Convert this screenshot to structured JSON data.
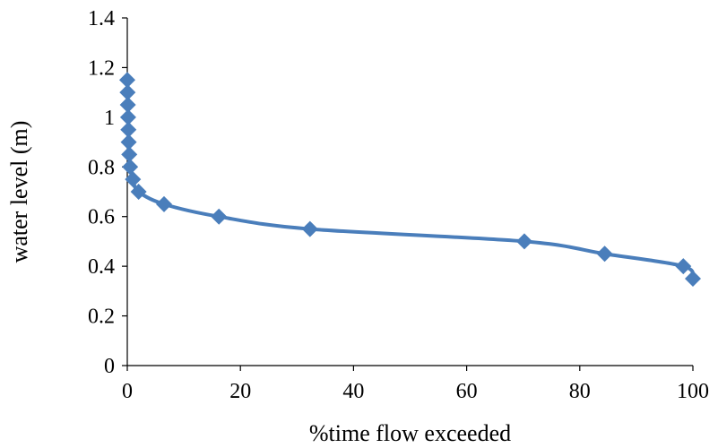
{
  "chart_data": {
    "type": "line",
    "title": "",
    "xlabel": "%time flow exceeded",
    "ylabel": "water level (m)",
    "xlim": [
      0,
      100
    ],
    "ylim": [
      0,
      1.4
    ],
    "x_ticks": [
      0,
      20,
      40,
      60,
      80,
      100
    ],
    "y_ticks": [
      0,
      0.2,
      0.4,
      0.6,
      0.8,
      1,
      1.2,
      1.4
    ],
    "x_tick_labels": [
      "0",
      "20",
      "40",
      "60",
      "80",
      "100"
    ],
    "y_tick_labels": [
      "0",
      "0.2",
      "0.4",
      "0.6",
      "0.8",
      "1",
      "1.2",
      "1.4"
    ],
    "grid": false,
    "legend": "none",
    "series": [
      {
        "color": "#4a7ebb",
        "marker": "diamond",
        "smooth": true,
        "x": [
          0.0,
          0.05,
          0.1,
          0.15,
          0.2,
          0.25,
          0.35,
          0.5,
          1.0,
          2.0,
          6.5,
          16.2,
          32.3,
          70.2,
          84.4,
          98.3,
          100.0
        ],
        "y": [
          1.15,
          1.1,
          1.05,
          1.0,
          0.95,
          0.9,
          0.85,
          0.8,
          0.75,
          0.7,
          0.65,
          0.6,
          0.55,
          0.5,
          0.45,
          0.4,
          0.35
        ]
      }
    ]
  }
}
